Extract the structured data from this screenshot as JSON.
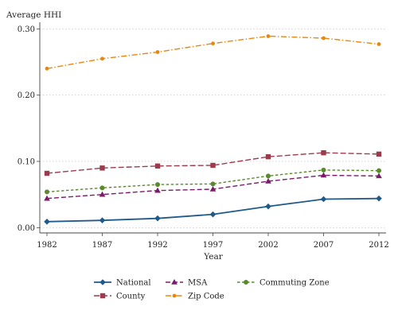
{
  "chart_data": {
    "type": "line",
    "ylabel": "Average HHI",
    "xlabel": "Year",
    "x": [
      1982,
      1987,
      1992,
      1997,
      2002,
      2007,
      2012
    ],
    "x_ticks": [
      "1982",
      "1987",
      "1992",
      "1997",
      "2002",
      "2007",
      "2012"
    ],
    "y_ticks": [
      "0.00",
      "0.10",
      "0.20",
      "0.30"
    ],
    "ylim": [
      -0.008,
      0.31
    ],
    "grid": "horizontal dotted",
    "legend_position": "bottom",
    "series": [
      {
        "name": "National",
        "color": "#1f5a8b",
        "marker": "diamond",
        "dash": "solid",
        "values": [
          0.009,
          0.011,
          0.014,
          0.02,
          0.032,
          0.043,
          0.044
        ]
      },
      {
        "name": "County",
        "color": "#9b3b4b",
        "marker": "square",
        "dash": "longdash",
        "values": [
          0.082,
          0.09,
          0.093,
          0.094,
          0.107,
          0.113,
          0.111
        ]
      },
      {
        "name": "MSA",
        "color": "#7a1b6b",
        "marker": "triangle",
        "dash": "dash",
        "values": [
          0.044,
          0.05,
          0.056,
          0.058,
          0.07,
          0.079,
          0.078
        ]
      },
      {
        "name": "Zip Code",
        "color": "#e8870e",
        "marker": "circle",
        "dash": "dashdot",
        "values": [
          0.24,
          0.255,
          0.265,
          0.278,
          0.289,
          0.286,
          0.277
        ]
      },
      {
        "name": "Commuting Zone",
        "color": "#5a8a2e",
        "marker": "circle",
        "dash": "shortdash",
        "values": [
          0.054,
          0.06,
          0.065,
          0.066,
          0.078,
          0.087,
          0.086
        ]
      }
    ]
  }
}
